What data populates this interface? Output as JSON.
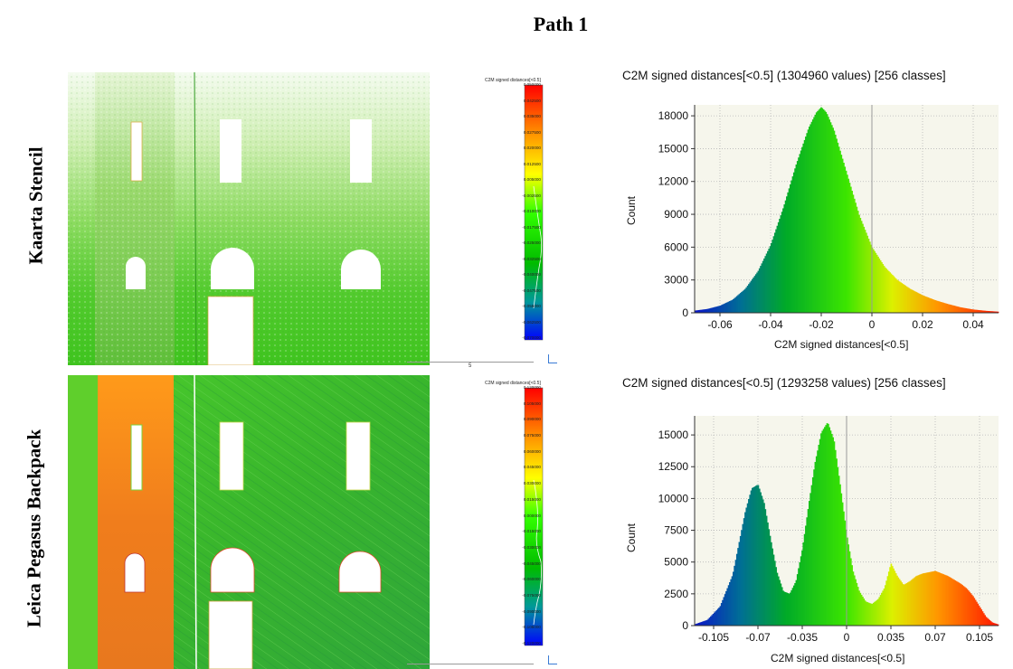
{
  "figure_title": "Path 1",
  "row_labels": [
    "Kaarta Stencil",
    "Leica Pegasus Backpack"
  ],
  "scale_label": "5",
  "colorbars": [
    {
      "title": "C2M signed distances[<0.5]",
      "ticks": [
        "0.050000",
        "0.042500",
        "0.035000",
        "0.027500",
        "0.020000",
        "0.012500",
        "0.005000",
        "-0.002500",
        "-0.010000",
        "-0.017500",
        "-0.025000",
        "-0.032500",
        "-0.040000",
        "-0.047500",
        "-0.055000",
        "-0.062500",
        "-0.070000"
      ]
    },
    {
      "title": "C2M signed distances[<0.5]",
      "ticks": [
        "0.120000",
        "0.105000",
        "0.090000",
        "0.075000",
        "0.060000",
        "0.045000",
        "0.030000",
        "0.015000",
        "0.000000",
        "-0.015000",
        "-0.030000",
        "-0.045000",
        "-0.060000",
        "-0.075000",
        "-0.090000",
        "-0.105000",
        "-0.120000"
      ]
    }
  ],
  "chart_data": [
    {
      "type": "area",
      "title": "C2M signed distances[<0.5] (1304960 values)  [256 classes]",
      "xlabel": "C2M signed distances[<0.5]",
      "ylabel": "Count",
      "xlim": [
        -0.07,
        0.05
      ],
      "ylim": [
        0,
        19000
      ],
      "xticks": [
        -0.06,
        -0.04,
        -0.02,
        0,
        0.02,
        0.04
      ],
      "xtick_labels": [
        "-0.06",
        "-0.04",
        "-0.02",
        "0",
        "0.02",
        "0.04"
      ],
      "yticks": [
        0,
        3000,
        6000,
        9000,
        12000,
        15000,
        18000
      ],
      "ytick_labels": [
        "0",
        "3000",
        "6000",
        "9000",
        "12000",
        "15000",
        "18000"
      ],
      "grid": true,
      "colormap_range": [
        -0.07,
        0.05
      ],
      "x": [
        -0.07,
        -0.065,
        -0.06,
        -0.055,
        -0.05,
        -0.045,
        -0.04,
        -0.035,
        -0.03,
        -0.025,
        -0.022,
        -0.02,
        -0.018,
        -0.015,
        -0.01,
        -0.005,
        0,
        0.005,
        0.01,
        0.015,
        0.02,
        0.025,
        0.03,
        0.035,
        0.04,
        0.045,
        0.05
      ],
      "y": [
        200,
        350,
        650,
        1200,
        2200,
        3800,
        6200,
        9600,
        13500,
        16900,
        18300,
        18800,
        18300,
        16700,
        12800,
        8900,
        6000,
        4200,
        3000,
        2200,
        1600,
        1150,
        800,
        500,
        300,
        180,
        100
      ]
    },
    {
      "type": "area",
      "title": "C2M signed distances[<0.5] (1293258 values)  [256 classes]",
      "xlabel": "C2M signed distances[<0.5]",
      "ylabel": "Count",
      "xlim": [
        -0.12,
        0.12
      ],
      "ylim": [
        0,
        16500
      ],
      "xticks": [
        -0.105,
        -0.07,
        -0.035,
        0,
        0.035,
        0.07,
        0.105
      ],
      "xtick_labels": [
        "-0.105",
        "-0.07",
        "-0.035",
        "0",
        "0.035",
        "0.07",
        "0.105"
      ],
      "yticks": [
        0,
        2500,
        5000,
        7500,
        10000,
        12500,
        15000
      ],
      "ytick_labels": [
        "0",
        "2500",
        "5000",
        "7500",
        "10000",
        "12500",
        "15000"
      ],
      "grid": true,
      "colormap_range": [
        -0.12,
        0.12
      ],
      "x": [
        -0.12,
        -0.11,
        -0.1,
        -0.09,
        -0.085,
        -0.08,
        -0.075,
        -0.07,
        -0.065,
        -0.06,
        -0.055,
        -0.05,
        -0.045,
        -0.04,
        -0.035,
        -0.03,
        -0.025,
        -0.02,
        -0.015,
        -0.01,
        -0.005,
        0,
        0.005,
        0.01,
        0.015,
        0.02,
        0.025,
        0.03,
        0.035,
        0.04,
        0.045,
        0.05,
        0.055,
        0.06,
        0.065,
        0.07,
        0.075,
        0.08,
        0.085,
        0.09,
        0.095,
        0.1,
        0.105,
        0.11,
        0.115,
        0.12
      ],
      "y": [
        100,
        450,
        1500,
        4000,
        6500,
        9000,
        10800,
        11100,
        9600,
        6800,
        4200,
        2700,
        2500,
        3500,
        6000,
        9500,
        12800,
        15200,
        16000,
        14600,
        11000,
        7200,
        4300,
        2700,
        1900,
        1700,
        2100,
        3000,
        4900,
        3900,
        3200,
        3500,
        3900,
        4100,
        4200,
        4300,
        4100,
        3900,
        3600,
        3300,
        2900,
        2300,
        1500,
        700,
        250,
        80
      ]
    }
  ]
}
